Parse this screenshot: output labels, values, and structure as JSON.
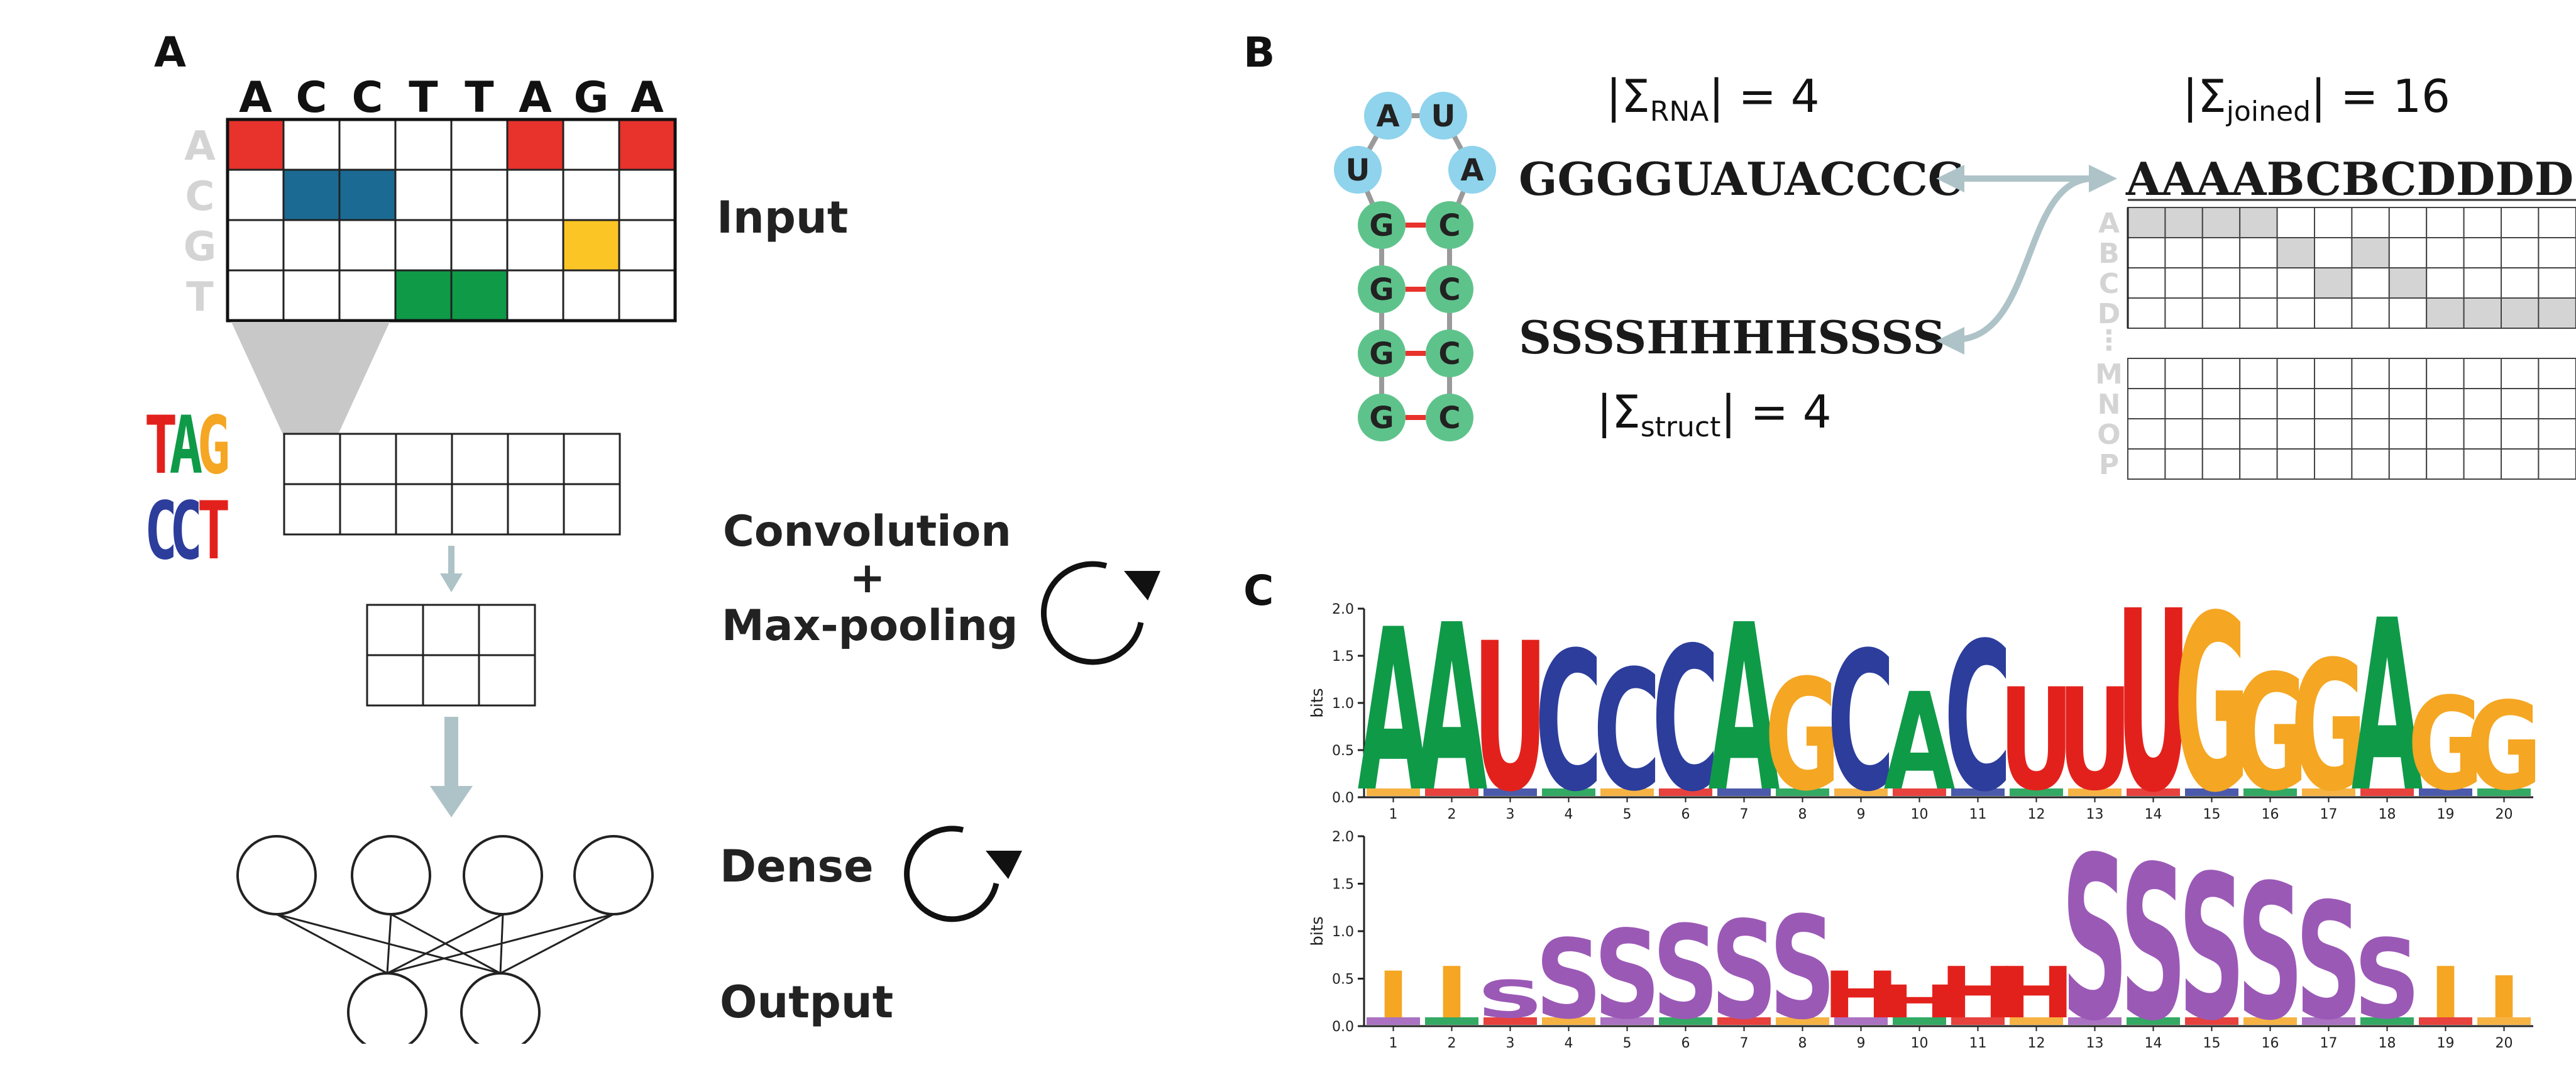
{
  "panels": {
    "a": "A",
    "b": "B",
    "c": "C"
  },
  "panel_a": {
    "input_sequence": [
      "A",
      "C",
      "C",
      "T",
      "T",
      "A",
      "G",
      "A"
    ],
    "row_labels": [
      "A",
      "C",
      "G",
      "T"
    ],
    "onehot_colors": {
      "A": "#e8322c",
      "C": "#1b6a93",
      "G": "#fbc526",
      "T": "#0f9a48"
    },
    "kernel_logo_top": [
      "T",
      "A",
      "G"
    ],
    "kernel_logo_bottom": [
      "C",
      "C",
      "T"
    ],
    "labels": {
      "input": "Input",
      "convolution": "Convolution",
      "plus": "+",
      "maxpooling": "Max-pooling",
      "dense": "Dense",
      "output": "Output"
    }
  },
  "panel_b": {
    "nucleotides": {
      "loop": [
        "A",
        "U",
        "U",
        "A"
      ],
      "stem_left": [
        "G",
        "G",
        "G",
        "G"
      ],
      "stem_right": [
        "C",
        "C",
        "C",
        "C"
      ]
    },
    "node_colors": {
      "loop": "#8fd3ec",
      "stem": "#5ec38b",
      "pair": "#e8322c"
    },
    "sigma_rna_lhs": "|Σ",
    "sigma_rna_sub": "RNA",
    "sigma_rna_rhs": "| = 4",
    "sigma_struct_lhs": "|Σ",
    "sigma_struct_sub": "struct",
    "sigma_struct_rhs": "| = 4",
    "sigma_joined_lhs": "|Σ",
    "sigma_joined_sub": "joined",
    "sigma_joined_rhs": "| = 16",
    "rna_sequence": "GGGGUAUACCCC",
    "struct_sequence": "SSSSHHHHSSSS",
    "joined_sequence": "AAAABCBCDDDD",
    "matrix_rows_top": [
      "A",
      "B",
      "C",
      "D"
    ],
    "matrix_ellipsis": "⋮",
    "matrix_rows_bottom": [
      "M",
      "N",
      "O",
      "P"
    ]
  },
  "panel_c": {
    "ylabel": "bits",
    "y_ticks": [
      "2.0",
      "1.5",
      "1.0",
      "0.5",
      "0.0"
    ],
    "positions": [
      "1",
      "2",
      "3",
      "4",
      "5",
      "6",
      "7",
      "8",
      "9",
      "10",
      "11",
      "12",
      "13",
      "14",
      "15",
      "16",
      "17",
      "18",
      "19",
      "20"
    ]
  },
  "colors": {
    "A": "#0f9a48",
    "C": "#2c3d9c",
    "G": "#f5a623",
    "U": "#e3211c",
    "S": "#9b59b6",
    "H": "#e3211c",
    "I": "#f5a623",
    "arrow": "#aec3c8",
    "grid": "#222222"
  },
  "chart_data": [
    {
      "type": "sequence-logo",
      "ylabel": "bits",
      "ylim": [
        0,
        2
      ],
      "x": [
        1,
        2,
        3,
        4,
        5,
        6,
        7,
        8,
        9,
        10,
        11,
        12,
        13,
        14,
        15,
        16,
        17,
        18,
        19,
        20
      ],
      "dominant": [
        "A",
        "A",
        "U",
        "C",
        "C",
        "C",
        "A",
        "G",
        "C",
        "A",
        "C",
        "U",
        "U",
        "U",
        "G",
        "G",
        "G",
        "A",
        "G",
        "G"
      ],
      "height_bits": [
        1.75,
        1.8,
        1.6,
        1.5,
        1.3,
        1.55,
        1.8,
        1.2,
        1.5,
        1.05,
        1.6,
        1.1,
        1.1,
        1.95,
        1.9,
        1.25,
        1.4,
        1.85,
        1.0,
        0.95
      ]
    },
    {
      "type": "sequence-logo",
      "ylabel": "bits",
      "ylim": [
        0,
        2
      ],
      "x": [
        1,
        2,
        3,
        4,
        5,
        6,
        7,
        8,
        9,
        10,
        11,
        12,
        13,
        14,
        15,
        16,
        17,
        18,
        19,
        20
      ],
      "dominant": [
        "I",
        "I",
        "S",
        "S",
        "S",
        "S",
        "S",
        "S",
        "H",
        "H",
        "H",
        "H",
        "S",
        "S",
        "S",
        "S",
        "S",
        "S",
        "I",
        "I"
      ],
      "height_bits": [
        0.5,
        0.55,
        0.4,
        0.85,
        0.95,
        1.0,
        1.05,
        1.1,
        0.5,
        0.35,
        0.55,
        0.55,
        1.75,
        1.65,
        1.55,
        1.45,
        1.25,
        0.85,
        0.55,
        0.45
      ]
    }
  ]
}
